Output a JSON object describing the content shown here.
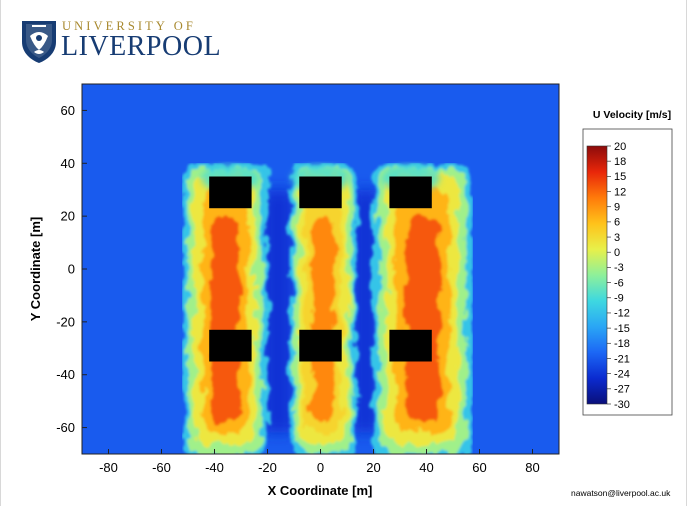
{
  "logo": {
    "upper_text": "UNIVERSITY OF",
    "main_text": "LIVERPOOL"
  },
  "footer": {
    "email": "nawatson@liverpool.ac.uk"
  },
  "colors": {
    "background_flow": "#1a74f0",
    "building_blocks": "#000000",
    "colormap": [
      "#0a0f7a",
      "#0b2bd0",
      "#1c67f5",
      "#2aa6f5",
      "#3ed8e0",
      "#8ef09a",
      "#e8f04a",
      "#ffc21a",
      "#ff7a0a",
      "#e8260a",
      "#8c0b0b"
    ]
  },
  "chart_data": {
    "type": "heatmap",
    "title": "",
    "xlabel": "X Coordinate [m]",
    "ylabel": "Y Coordinate [m]",
    "xlim": [
      -90,
      90
    ],
    "ylim": [
      -70,
      70
    ],
    "xticks": [
      -80,
      -60,
      -40,
      -20,
      0,
      20,
      40,
      60,
      80
    ],
    "yticks": [
      -60,
      -40,
      -20,
      0,
      20,
      40,
      60
    ],
    "colorbar": {
      "label": "U Velocity [m/s]",
      "range": [
        -30,
        20
      ],
      "ticks": [
        20,
        18,
        15,
        12,
        9,
        6,
        3,
        0,
        -3,
        -6,
        -9,
        -12,
        -15,
        -18,
        -21,
        -24,
        -27,
        -30
      ]
    },
    "buildings": [
      {
        "x": [
          -42,
          -26
        ],
        "y": [
          23,
          35
        ]
      },
      {
        "x": [
          -8,
          8
        ],
        "y": [
          23,
          35
        ]
      },
      {
        "x": [
          26,
          42
        ],
        "y": [
          23,
          35
        ]
      },
      {
        "x": [
          -42,
          -26
        ],
        "y": [
          -35,
          -23
        ]
      },
      {
        "x": [
          -8,
          8
        ],
        "y": [
          -35,
          -23
        ]
      },
      {
        "x": [
          26,
          42
        ],
        "y": [
          -35,
          -23
        ]
      }
    ],
    "field_features": {
      "ambient_velocity": -21,
      "wake_columns": [
        {
          "x_range": [
            -50,
            -22
          ],
          "peak_velocity": 12
        },
        {
          "x_range": [
            -10,
            12
          ],
          "peak_velocity": 9
        },
        {
          "x_range": [
            22,
            55
          ],
          "peak_velocity": 12
        }
      ],
      "reverse_flow_columns": [
        {
          "x_range": [
            -22,
            -10
          ],
          "min_velocity": -27
        },
        {
          "x_range": [
            12,
            22
          ],
          "min_velocity": -27
        }
      ]
    }
  }
}
